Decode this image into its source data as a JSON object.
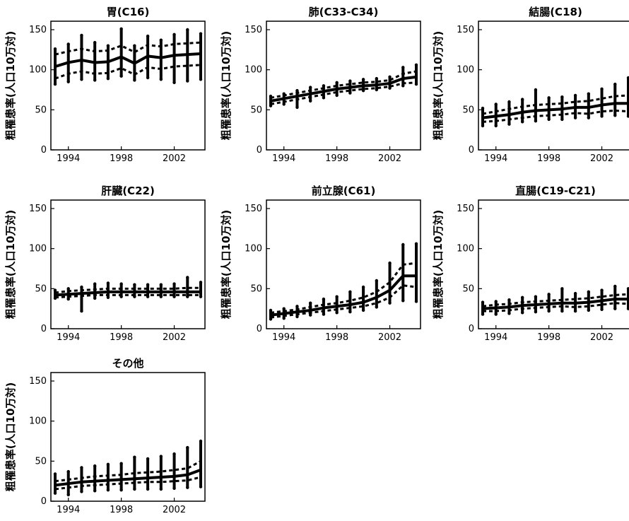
{
  "y_axis_label": "粗罹患率(人口10万対)",
  "chart_data": [
    {
      "type": "line",
      "title": "胃(C16)",
      "xlabel": "",
      "ylabel": "粗罹患率(人口10万対)",
      "xlim": [
        1993,
        2004
      ],
      "ylim": [
        0,
        150
      ],
      "xticks": [
        1994,
        1998,
        2002
      ],
      "yticks": [
        0,
        50,
        100,
        150
      ],
      "x": [
        1993,
        1994,
        1995,
        1996,
        1997,
        1998,
        1999,
        2000,
        2001,
        2002,
        2003,
        2004
      ],
      "series": [
        {
          "style": "solid",
          "values": [
            104,
            109,
            112,
            109,
            110,
            116,
            108,
            117,
            115,
            118,
            119,
            120
          ]
        },
        {
          "style": "dotted",
          "values": [
            119,
            123,
            126,
            123,
            124,
            130,
            122,
            131,
            129,
            132,
            133,
            134
          ]
        },
        {
          "style": "dotted",
          "values": [
            89,
            95,
            98,
            95,
            96,
            102,
            94,
            103,
            101,
            104,
            105,
            106
          ]
        }
      ],
      "ranges": [
        {
          "x": 1993,
          "low": 82,
          "high": 126
        },
        {
          "x": 1994,
          "low": 85,
          "high": 132
        },
        {
          "x": 1995,
          "low": 88,
          "high": 143
        },
        {
          "x": 1996,
          "low": 87,
          "high": 134
        },
        {
          "x": 1997,
          "low": 89,
          "high": 130
        },
        {
          "x": 1998,
          "low": 92,
          "high": 151
        },
        {
          "x": 1999,
          "low": 87,
          "high": 130
        },
        {
          "x": 2000,
          "low": 90,
          "high": 142
        },
        {
          "x": 2001,
          "low": 88,
          "high": 137
        },
        {
          "x": 2002,
          "low": 84,
          "high": 144
        },
        {
          "x": 2003,
          "low": 86,
          "high": 150
        },
        {
          "x": 2004,
          "low": 88,
          "high": 145
        }
      ]
    },
    {
      "type": "line",
      "title": "肺(C33-C34)",
      "xlabel": "",
      "ylabel": "粗罹患率(人口10万対)",
      "xlim": [
        1993,
        2004
      ],
      "ylim": [
        0,
        150
      ],
      "xticks": [
        1994,
        1998,
        2002
      ],
      "yticks": [
        0,
        50,
        100,
        150
      ],
      "x": [
        1993,
        1994,
        1995,
        1996,
        1997,
        1998,
        1999,
        2000,
        2001,
        2002,
        2003,
        2004
      ],
      "series": [
        {
          "style": "solid",
          "values": [
            61,
            64,
            67,
            70,
            73,
            76,
            78,
            80,
            81,
            83,
            89,
            91
          ]
        },
        {
          "style": "dotted",
          "values": [
            65,
            68,
            71,
            74,
            77,
            80,
            82,
            84,
            85,
            87,
            95,
            98
          ]
        },
        {
          "style": "dotted",
          "values": [
            57,
            60,
            63,
            66,
            69,
            72,
            74,
            76,
            77,
            79,
            83,
            84
          ]
        }
      ],
      "ranges": [
        {
          "x": 1993,
          "low": 55,
          "high": 67
        },
        {
          "x": 1994,
          "low": 57,
          "high": 70
        },
        {
          "x": 1995,
          "low": 53,
          "high": 74
        },
        {
          "x": 1996,
          "low": 61,
          "high": 78
        },
        {
          "x": 1997,
          "low": 65,
          "high": 80
        },
        {
          "x": 1998,
          "low": 68,
          "high": 84
        },
        {
          "x": 1999,
          "low": 71,
          "high": 86
        },
        {
          "x": 2000,
          "low": 74,
          "high": 88
        },
        {
          "x": 2001,
          "low": 75,
          "high": 89
        },
        {
          "x": 2002,
          "low": 77,
          "high": 91
        },
        {
          "x": 2003,
          "low": 80,
          "high": 103
        },
        {
          "x": 2004,
          "low": 82,
          "high": 106
        }
      ]
    },
    {
      "type": "line",
      "title": "結腸(C18)",
      "xlabel": "",
      "ylabel": "粗罹患率(人口10万対)",
      "xlim": [
        1993,
        2004
      ],
      "ylim": [
        0,
        150
      ],
      "xticks": [
        1994,
        1998,
        2002
      ],
      "yticks": [
        0,
        50,
        100,
        150
      ],
      "x": [
        1993,
        1994,
        1995,
        1996,
        1997,
        1998,
        1999,
        2000,
        2001,
        2002,
        2003,
        2004
      ],
      "series": [
        {
          "style": "solid",
          "values": [
            40,
            42,
            44,
            47,
            49,
            50,
            51,
            53,
            53,
            56,
            58,
            58
          ]
        },
        {
          "style": "dotted",
          "values": [
            45,
            48,
            51,
            54,
            56,
            57,
            58,
            60,
            61,
            64,
            67,
            68
          ]
        },
        {
          "style": "dotted",
          "values": [
            35,
            36,
            38,
            40,
            42,
            43,
            44,
            46,
            45,
            48,
            49,
            48
          ]
        }
      ],
      "ranges": [
        {
          "x": 1993,
          "low": 30,
          "high": 52
        },
        {
          "x": 1994,
          "low": 30,
          "high": 57
        },
        {
          "x": 1995,
          "low": 32,
          "high": 60
        },
        {
          "x": 1996,
          "low": 35,
          "high": 63
        },
        {
          "x": 1997,
          "low": 36,
          "high": 75
        },
        {
          "x": 1998,
          "low": 38,
          "high": 65
        },
        {
          "x": 1999,
          "low": 38,
          "high": 66
        },
        {
          "x": 2000,
          "low": 40,
          "high": 68
        },
        {
          "x": 2001,
          "low": 40,
          "high": 70
        },
        {
          "x": 2002,
          "low": 42,
          "high": 76
        },
        {
          "x": 2003,
          "low": 43,
          "high": 82
        },
        {
          "x": 2004,
          "low": 42,
          "high": 90
        }
      ]
    },
    {
      "type": "line",
      "title": "肝臓(C22)",
      "xlabel": "",
      "ylabel": "粗罹患率(人口10万対)",
      "xlim": [
        1993,
        2004
      ],
      "ylim": [
        0,
        150
      ],
      "xticks": [
        1994,
        1998,
        2002
      ],
      "yticks": [
        0,
        50,
        100,
        150
      ],
      "x": [
        1993,
        1994,
        1995,
        1996,
        1997,
        1998,
        1999,
        2000,
        2001,
        2002,
        2003,
        2004
      ],
      "series": [
        {
          "style": "solid",
          "values": [
            42,
            43,
            44,
            45,
            46,
            46,
            46,
            46,
            46,
            46,
            46,
            46
          ]
        },
        {
          "style": "dotted",
          "values": [
            45,
            47,
            48,
            49,
            50,
            50,
            50,
            50,
            50,
            50,
            51,
            51
          ]
        },
        {
          "style": "dotted",
          "values": [
            39,
            40,
            41,
            42,
            42,
            42,
            42,
            42,
            42,
            42,
            42,
            42
          ]
        }
      ],
      "ranges": [
        {
          "x": 1993,
          "low": 38,
          "high": 48
        },
        {
          "x": 1994,
          "low": 37,
          "high": 50
        },
        {
          "x": 1995,
          "low": 22,
          "high": 52
        },
        {
          "x": 1996,
          "low": 38,
          "high": 56
        },
        {
          "x": 1997,
          "low": 39,
          "high": 57
        },
        {
          "x": 1998,
          "low": 40,
          "high": 56
        },
        {
          "x": 1999,
          "low": 40,
          "high": 55
        },
        {
          "x": 2000,
          "low": 40,
          "high": 55
        },
        {
          "x": 2001,
          "low": 40,
          "high": 55
        },
        {
          "x": 2002,
          "low": 40,
          "high": 56
        },
        {
          "x": 2003,
          "low": 40,
          "high": 64
        },
        {
          "x": 2004,
          "low": 40,
          "high": 58
        }
      ]
    },
    {
      "type": "line",
      "title": "前立腺(C61)",
      "xlabel": "",
      "ylabel": "粗罹患率(人口10万対)",
      "xlim": [
        1993,
        2004
      ],
      "ylim": [
        0,
        150
      ],
      "xticks": [
        1994,
        1998,
        2002
      ],
      "yticks": [
        0,
        50,
        100,
        150
      ],
      "x": [
        1993,
        1994,
        1995,
        1996,
        1997,
        1998,
        1999,
        2000,
        2001,
        2002,
        2003,
        2004
      ],
      "series": [
        {
          "style": "solid",
          "values": [
            17,
            19,
            21,
            23,
            26,
            28,
            30,
            33,
            39,
            48,
            66,
            66
          ]
        },
        {
          "style": "dotted",
          "values": [
            20,
            22,
            24,
            27,
            30,
            32,
            35,
            39,
            46,
            58,
            80,
            82
          ]
        },
        {
          "style": "dotted",
          "values": [
            14,
            16,
            18,
            20,
            22,
            24,
            26,
            28,
            32,
            39,
            54,
            52
          ]
        }
      ],
      "ranges": [
        {
          "x": 1993,
          "low": 12,
          "high": 23
        },
        {
          "x": 1994,
          "low": 13,
          "high": 25
        },
        {
          "x": 1995,
          "low": 15,
          "high": 28
        },
        {
          "x": 1996,
          "low": 17,
          "high": 32
        },
        {
          "x": 1997,
          "low": 18,
          "high": 37
        },
        {
          "x": 1998,
          "low": 20,
          "high": 40
        },
        {
          "x": 1999,
          "low": 21,
          "high": 46
        },
        {
          "x": 2000,
          "low": 23,
          "high": 52
        },
        {
          "x": 2001,
          "low": 27,
          "high": 60
        },
        {
          "x": 2002,
          "low": 32,
          "high": 82
        },
        {
          "x": 2003,
          "low": 35,
          "high": 105
        },
        {
          "x": 2004,
          "low": 34,
          "high": 106
        }
      ]
    },
    {
      "type": "line",
      "title": "直腸(C19-C21)",
      "xlabel": "",
      "ylabel": "粗罹患率(人口10万対)",
      "xlim": [
        1993,
        2004
      ],
      "ylim": [
        0,
        150
      ],
      "xticks": [
        1994,
        1998,
        2002
      ],
      "yticks": [
        0,
        50,
        100,
        150
      ],
      "x": [
        1993,
        1994,
        1995,
        1996,
        1997,
        1998,
        1999,
        2000,
        2001,
        2002,
        2003,
        2004
      ],
      "series": [
        {
          "style": "solid",
          "values": [
            25,
            26,
            27,
            29,
            30,
            31,
            32,
            32,
            33,
            35,
            37,
            37
          ]
        },
        {
          "style": "dotted",
          "values": [
            28,
            30,
            31,
            33,
            34,
            35,
            36,
            37,
            38,
            40,
            42,
            43
          ]
        },
        {
          "style": "dotted",
          "values": [
            22,
            22,
            23,
            25,
            26,
            27,
            28,
            27,
            28,
            30,
            32,
            31
          ]
        }
      ],
      "ranges": [
        {
          "x": 1993,
          "low": 18,
          "high": 33
        },
        {
          "x": 1994,
          "low": 18,
          "high": 34
        },
        {
          "x": 1995,
          "low": 19,
          "high": 36
        },
        {
          "x": 1996,
          "low": 20,
          "high": 39
        },
        {
          "x": 1997,
          "low": 21,
          "high": 40
        },
        {
          "x": 1998,
          "low": 22,
          "high": 43
        },
        {
          "x": 1999,
          "low": 22,
          "high": 50
        },
        {
          "x": 2000,
          "low": 22,
          "high": 44
        },
        {
          "x": 2001,
          "low": 23,
          "high": 46
        },
        {
          "x": 2002,
          "low": 24,
          "high": 48
        },
        {
          "x": 2003,
          "low": 25,
          "high": 53
        },
        {
          "x": 2004,
          "low": 25,
          "high": 50
        }
      ]
    },
    {
      "type": "line",
      "title": "その他",
      "xlabel": "",
      "ylabel": "粗罹患率(人口10万対)",
      "xlim": [
        1993,
        2004
      ],
      "ylim": [
        0,
        150
      ],
      "xticks": [
        1994,
        1998,
        2002
      ],
      "yticks": [
        0,
        50,
        100,
        150
      ],
      "x": [
        1993,
        1994,
        1995,
        1996,
        1997,
        1998,
        1999,
        2000,
        2001,
        2002,
        2003,
        2004
      ],
      "series": [
        {
          "style": "solid",
          "values": [
            20,
            22,
            24,
            25,
            26,
            27,
            28,
            29,
            30,
            31,
            33,
            39
          ]
        },
        {
          "style": "dotted",
          "values": [
            25,
            27,
            29,
            31,
            32,
            33,
            35,
            36,
            37,
            39,
            41,
            50
          ]
        },
        {
          "style": "dotted",
          "values": [
            15,
            17,
            19,
            20,
            21,
            22,
            23,
            24,
            24,
            25,
            26,
            30
          ]
        }
      ],
      "ranges": [
        {
          "x": 1993,
          "low": 10,
          "high": 34
        },
        {
          "x": 1994,
          "low": 8,
          "high": 37
        },
        {
          "x": 1995,
          "low": 12,
          "high": 42
        },
        {
          "x": 1996,
          "low": 13,
          "high": 44
        },
        {
          "x": 1997,
          "low": 14,
          "high": 46
        },
        {
          "x": 1998,
          "low": 14,
          "high": 47
        },
        {
          "x": 1999,
          "low": 15,
          "high": 55
        },
        {
          "x": 2000,
          "low": 15,
          "high": 53
        },
        {
          "x": 2001,
          "low": 15,
          "high": 56
        },
        {
          "x": 2002,
          "low": 16,
          "high": 59
        },
        {
          "x": 2003,
          "low": 17,
          "high": 67
        },
        {
          "x": 2004,
          "low": 18,
          "high": 75
        }
      ]
    }
  ]
}
